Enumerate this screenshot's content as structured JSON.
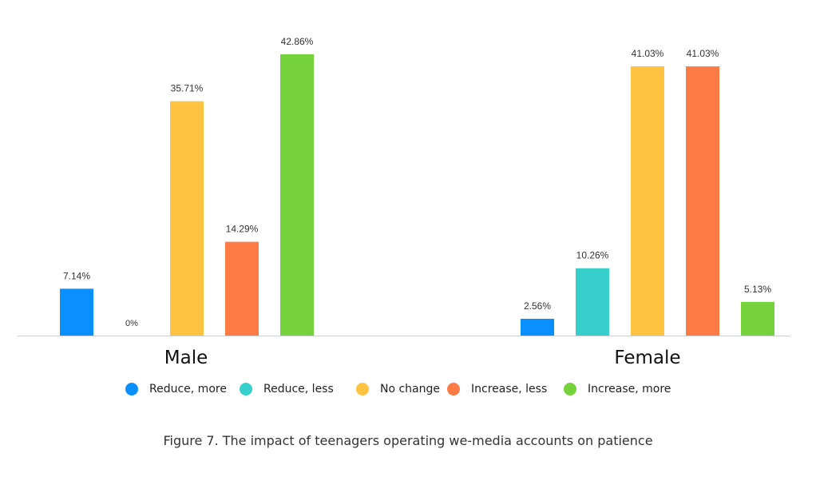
{
  "chart_data": {
    "type": "bar",
    "categories": [
      "Male",
      "Female"
    ],
    "series": [
      {
        "name": "Reduce, more",
        "color": "#0a8fff",
        "values": [
          7.14,
          2.56
        ],
        "labels": [
          "7.14%",
          "2.56%"
        ]
      },
      {
        "name": "Reduce, less",
        "color": "#36cfcb",
        "values": [
          0,
          10.26
        ],
        "labels": [
          "0%",
          "10.26%"
        ]
      },
      {
        "name": "No change",
        "color": "#ffc341",
        "values": [
          35.71,
          41.03
        ],
        "labels": [
          "35.71%",
          "41.03%"
        ]
      },
      {
        "name": "Increase, less",
        "color": "#ff7b46",
        "values": [
          14.29,
          41.03
        ],
        "labels": [
          "14.29%",
          "41.03%"
        ]
      },
      {
        "name": "Increase, more",
        "color": "#75d23c",
        "values": [
          42.86,
          5.13
        ],
        "labels": [
          "42.86%",
          "5.13%"
        ]
      }
    ],
    "ylim": [
      0,
      42.86
    ],
    "title": "",
    "xlabel": "",
    "ylabel": "",
    "grid": false,
    "legend": "bottom"
  },
  "caption": "Figure 7. The impact of teenagers operating we-media accounts on patience"
}
